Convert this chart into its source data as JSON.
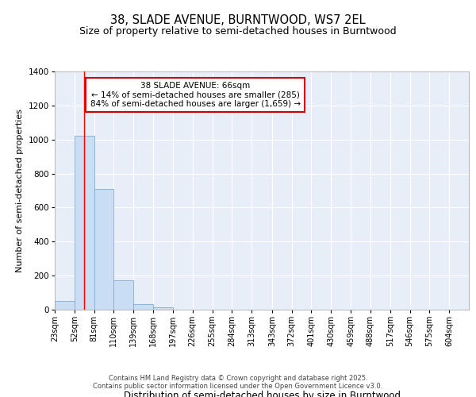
{
  "title_line1": "38, SLADE AVENUE, BURNTWOOD, WS7 2EL",
  "title_line2": "Size of property relative to semi-detached houses in Burntwood",
  "xlabel": "Distribution of semi-detached houses by size in Burntwood",
  "ylabel": "Number of semi-detached properties",
  "bins": [
    23,
    52,
    81,
    110,
    139,
    168,
    197,
    226,
    255,
    284,
    313,
    343,
    372,
    401,
    430,
    459,
    488,
    517,
    546,
    575,
    604
  ],
  "values": [
    50,
    1020,
    710,
    175,
    35,
    15,
    0,
    0,
    0,
    0,
    0,
    0,
    0,
    0,
    0,
    0,
    0,
    0,
    0,
    0
  ],
  "bar_color": "#c9ddf5",
  "bar_edge_color": "#7bafd4",
  "red_line_x": 66,
  "ylim": [
    0,
    1400
  ],
  "yticks": [
    0,
    200,
    400,
    600,
    800,
    1000,
    1200,
    1400
  ],
  "annotation_title": "38 SLADE AVENUE: 66sqm",
  "annotation_line2": "← 14% of semi-detached houses are smaller (285)",
  "annotation_line3": "84% of semi-detached houses are larger (1,659) →",
  "annotation_box_color": "#ffffff",
  "annotation_box_edge": "#cc0000",
  "bg_color": "#e8eef8",
  "grid_color": "#ffffff",
  "footer_line1": "Contains HM Land Registry data © Crown copyright and database right 2025.",
  "footer_line2": "Contains public sector information licensed under the Open Government Licence v3.0.",
  "title_fontsize": 10.5,
  "subtitle_fontsize": 9,
  "tick_fontsize": 7,
  "ylabel_fontsize": 8,
  "xlabel_fontsize": 8.5,
  "annot_fontsize": 7.5,
  "footer_fontsize": 6
}
